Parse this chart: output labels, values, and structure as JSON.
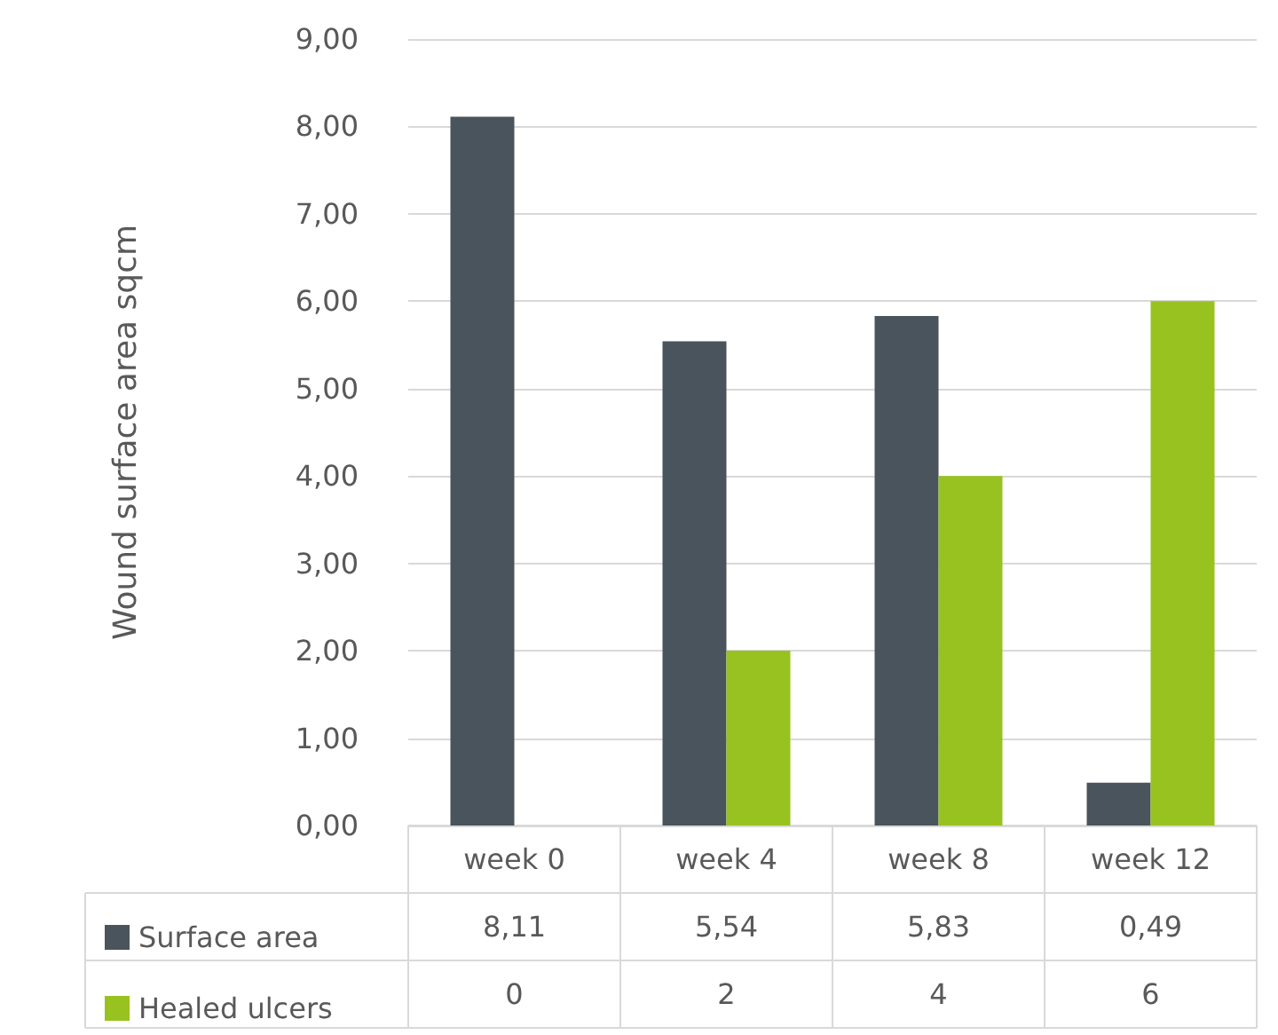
{
  "chart_data": {
    "type": "bar",
    "ylabel": "Wound surface area sqcm",
    "categories": [
      "week 0",
      "week 4",
      "week 8",
      "week 12"
    ],
    "series": [
      {
        "name": "Surface area",
        "color": "#4a545c",
        "values": [
          8.11,
          5.54,
          5.83,
          0.49
        ],
        "value_labels": [
          "8,11",
          "5,54",
          "5,83",
          "0,49"
        ]
      },
      {
        "name": "Healed ulcers",
        "color": "#98c21f",
        "values": [
          0,
          2,
          4,
          6
        ],
        "value_labels": [
          "0",
          "2",
          "4",
          "6"
        ]
      }
    ],
    "ylim": [
      0,
      9
    ],
    "yticks": [
      {
        "value": 0,
        "label": "0,00"
      },
      {
        "value": 1,
        "label": "1,00"
      },
      {
        "value": 2,
        "label": "2,00"
      },
      {
        "value": 3,
        "label": "3,00"
      },
      {
        "value": 4,
        "label": "4,00"
      },
      {
        "value": 5,
        "label": "5,00"
      },
      {
        "value": 6,
        "label": "6,00"
      },
      {
        "value": 7,
        "label": "7,00"
      },
      {
        "value": 8,
        "label": "8,00"
      },
      {
        "value": 9,
        "label": "9,00"
      }
    ],
    "grid": "y",
    "legend": "bottom left"
  }
}
